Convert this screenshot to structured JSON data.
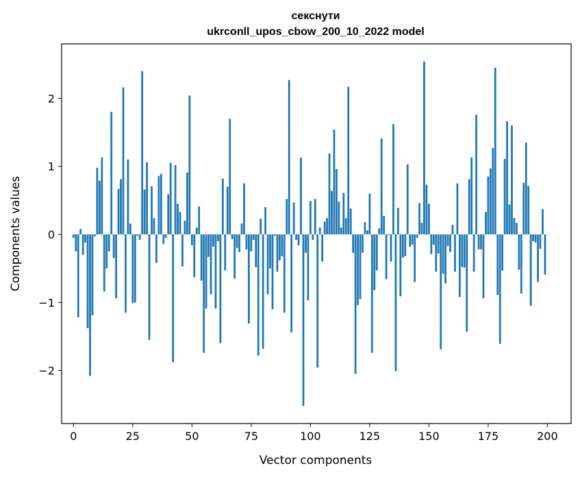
{
  "chart_data": {
    "type": "bar",
    "title": "секснути",
    "subtitle": "ukrconll_upos_cbow_200_10_2022 model",
    "xlabel": "Vector components",
    "ylabel": "Components values",
    "xlim": [
      -5,
      210
    ],
    "ylim": [
      -2.78,
      2.8
    ],
    "xticks": [
      0,
      25,
      50,
      75,
      100,
      125,
      150,
      175,
      200
    ],
    "yticks": [
      -2,
      -1,
      0,
      1,
      2
    ],
    "xtick_labels": [
      "0",
      "25",
      "50",
      "75",
      "100",
      "125",
      "150",
      "175",
      "200"
    ],
    "ytick_labels": [
      "−2",
      "−1",
      "0",
      "1",
      "2"
    ],
    "grid": false,
    "bar_color": "#1f77b4",
    "values": [
      -0.05,
      -0.25,
      -1.22,
      0.08,
      -0.3,
      -0.12,
      -1.38,
      -2.08,
      -1.19,
      -0.03,
      0.98,
      0.79,
      1.13,
      -0.84,
      -0.5,
      -0.25,
      1.8,
      -0.35,
      -0.94,
      0.67,
      0.81,
      2.16,
      -1.15,
      1.1,
      0.16,
      -1.01,
      -1.0,
      -0.02,
      -0.08,
      2.4,
      0.66,
      1.06,
      -1.55,
      0.71,
      0.24,
      -0.42,
      0.86,
      0.89,
      -0.14,
      -0.05,
      0.59,
      1.05,
      -1.88,
      1.02,
      0.45,
      0.33,
      -0.47,
      0.2,
      0.91,
      2.04,
      -0.16,
      -0.63,
      0.1,
      0.41,
      -0.68,
      -1.74,
      -1.09,
      -0.33,
      -0.88,
      -0.18,
      -1.09,
      -0.1,
      -1.6,
      0.82,
      -0.53,
      0.7,
      1.7,
      -0.07,
      -0.65,
      -0.2,
      -0.26,
      0.16,
      0.75,
      -0.22,
      -1.31,
      -0.25,
      -0.08,
      -0.48,
      -1.78,
      0.23,
      -1.68,
      0.4,
      -0.88,
      -0.5,
      -1.1,
      -0.02,
      -0.55,
      -0.38,
      -0.32,
      -1.15,
      0.52,
      2.27,
      -1.44,
      0.47,
      -0.08,
      -0.16,
      1.13,
      -2.52,
      -0.27,
      -0.97,
      0.49,
      -0.08,
      0.52,
      -1.96,
      0.1,
      -0.4,
      0.19,
      0.24,
      1.19,
      0.64,
      1.54,
      0.96,
      0.48,
      0.1,
      0.61,
      0.24,
      2.17,
      0.38,
      -0.27,
      -2.05,
      -1.04,
      -0.95,
      -0.27,
      0.18,
      0.06,
      0.6,
      -1.74,
      -0.82,
      -0.53,
      0.09,
      1.41,
      0.27,
      -0.66,
      -0.01,
      -0.4,
      1.62,
      -2.01,
      0.39,
      -0.91,
      -0.34,
      -0.32,
      1.03,
      -0.18,
      -0.15,
      -0.7,
      -0.05,
      0.46,
      0.17,
      2.54,
      0.73,
      0.45,
      -0.29,
      -0.15,
      -0.55,
      -0.28,
      -1.69,
      -0.58,
      -0.72,
      -0.17,
      -0.26,
      0.14,
      -0.55,
      0.75,
      -0.92,
      -0.48,
      -0.49,
      -1.43,
      0.81,
      1.13,
      -0.55,
      1.76,
      -0.22,
      -0.22,
      -0.94,
      0.33,
      0.85,
      0.97,
      1.27,
      2.45,
      -0.89,
      -1.61,
      -0.53,
      1.11,
      1.66,
      0.44,
      1.6,
      0.24,
      0.17,
      -0.52,
      -0.87,
      0.76,
      1.35,
      0.71,
      -1.05,
      -0.1,
      -0.12,
      -0.7,
      -0.21,
      0.37,
      -0.59
    ]
  }
}
